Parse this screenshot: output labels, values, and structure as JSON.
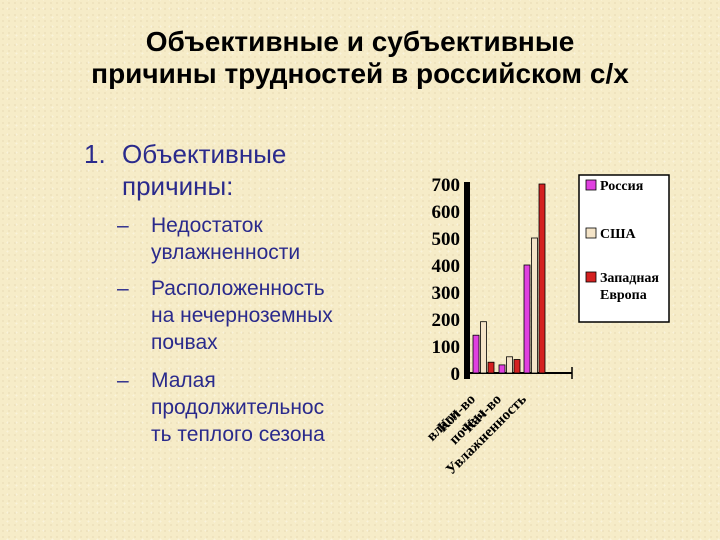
{
  "title": {
    "line1": "Объективные и субъективные",
    "line2": "причины трудностей в российском с/х"
  },
  "list": {
    "number": "1.",
    "heading_line1": "Объективные",
    "heading_line2": "причины:",
    "items": [
      {
        "dash": "–",
        "lines": [
          "Недостаток",
          "увлажненности"
        ]
      },
      {
        "dash": "–",
        "lines": [
          "Расположенность",
          "на нечерноземных",
          "почвах"
        ]
      },
      {
        "dash": "–",
        "lines": [
          "Малая",
          "продолжительнос",
          "ть теплого сезона"
        ]
      }
    ]
  },
  "chart_data": {
    "type": "bar",
    "categories": [
      "Кол-во влаги",
      "Кач-во почвы",
      "Увлажненность"
    ],
    "category_label_lines": [
      [
        "Кол-во",
        "влаги"
      ],
      [
        "Кач-во",
        "почвы"
      ],
      [
        "Увлажненность"
      ]
    ],
    "series": [
      {
        "name": "Россия",
        "values": [
          140,
          30,
          400
        ],
        "color": "#e040e0"
      },
      {
        "name": "США",
        "values": [
          190,
          60,
          500
        ],
        "color": "#f4e4c8"
      },
      {
        "name": "Западная Европа",
        "values": [
          40,
          50,
          700
        ],
        "color": "#d42020"
      }
    ],
    "legend_lines": [
      [
        "Россия"
      ],
      [
        "США"
      ],
      [
        "Западная",
        "Европа"
      ]
    ],
    "y_ticks": [
      "0",
      "100",
      "200",
      "300",
      "400",
      "500",
      "600",
      "700"
    ],
    "ylim": [
      0,
      700
    ],
    "grid": false,
    "legend_position": "right"
  }
}
